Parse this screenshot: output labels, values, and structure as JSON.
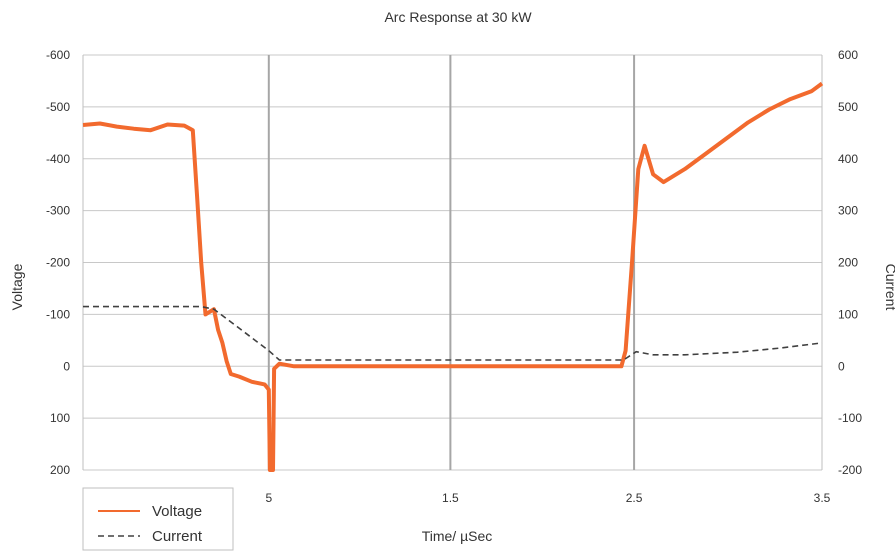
{
  "chart_data": {
    "type": "line",
    "title": "Arc Response at 30 kW",
    "xlabel": "Time/ µSec",
    "ylabel": "Voltage",
    "y2label": "Current",
    "x_tick_labels": [
      "5",
      "1.5",
      "2.5",
      "3.5"
    ],
    "y_tick_labels": [
      "-600",
      "-500",
      "-400",
      "-300",
      "-200",
      "-100",
      "0",
      "100",
      "200"
    ],
    "y2_tick_labels": [
      "600",
      "500",
      "400",
      "300",
      "200",
      "100",
      "0",
      "-100",
      "-200"
    ],
    "ylim": [
      -600,
      200
    ],
    "y2lim": [
      -200,
      600
    ],
    "grid": true,
    "legend_position": "bottom-left",
    "colors": {
      "voltage": "#f26a2e",
      "current": "#404040",
      "grid": "#c8c8c8",
      "axis": "#bfbfbf"
    },
    "series": [
      {
        "name": "Voltage",
        "axis": "left",
        "style": "solid",
        "points": [
          [
            0.0,
            -465
          ],
          [
            0.08,
            -468
          ],
          [
            0.16,
            -462
          ],
          [
            0.24,
            -458
          ],
          [
            0.32,
            -455
          ],
          [
            0.4,
            -466
          ],
          [
            0.48,
            -464
          ],
          [
            0.52,
            -455
          ],
          [
            0.54,
            -330
          ],
          [
            0.56,
            -200
          ],
          [
            0.58,
            -100
          ],
          [
            0.62,
            -110
          ],
          [
            0.64,
            -70
          ],
          [
            0.66,
            -45
          ],
          [
            0.68,
            -10
          ],
          [
            0.7,
            15
          ],
          [
            0.74,
            20
          ],
          [
            0.8,
            30
          ],
          [
            0.86,
            35
          ],
          [
            0.88,
            45
          ],
          [
            0.885,
            200
          ],
          [
            0.9,
            200
          ],
          [
            0.905,
            5
          ],
          [
            0.93,
            -5
          ],
          [
            1.0,
            0
          ],
          [
            1.3,
            0
          ],
          [
            1.6,
            0
          ],
          [
            1.9,
            0
          ],
          [
            2.2,
            0
          ],
          [
            2.45,
            0
          ],
          [
            2.55,
            0
          ],
          [
            2.57,
            -30
          ],
          [
            2.6,
            -200
          ],
          [
            2.63,
            -380
          ],
          [
            2.66,
            -425
          ],
          [
            2.7,
            -370
          ],
          [
            2.75,
            -355
          ],
          [
            2.85,
            -380
          ],
          [
            2.95,
            -410
          ],
          [
            3.05,
            -440
          ],
          [
            3.15,
            -470
          ],
          [
            3.25,
            -495
          ],
          [
            3.35,
            -515
          ],
          [
            3.45,
            -530
          ],
          [
            3.5,
            -545
          ]
        ]
      },
      {
        "name": "Current",
        "axis": "right",
        "style": "dashed",
        "points": [
          [
            0.0,
            115
          ],
          [
            0.56,
            115
          ],
          [
            0.62,
            110
          ],
          [
            0.75,
            70
          ],
          [
            0.88,
            30
          ],
          [
            0.93,
            12
          ],
          [
            1.2,
            12
          ],
          [
            1.6,
            12
          ],
          [
            2.0,
            12
          ],
          [
            2.4,
            12
          ],
          [
            2.56,
            12
          ],
          [
            2.62,
            28
          ],
          [
            2.7,
            22
          ],
          [
            2.85,
            22
          ],
          [
            3.1,
            27
          ],
          [
            3.3,
            35
          ],
          [
            3.5,
            45
          ]
        ]
      }
    ]
  }
}
